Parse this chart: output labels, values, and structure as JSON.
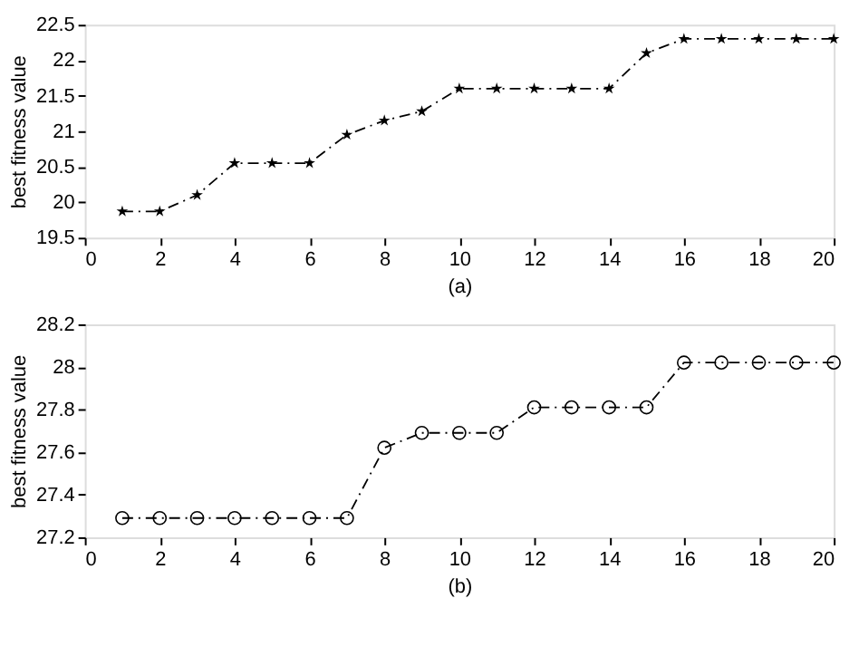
{
  "chart_data": [
    {
      "type": "line",
      "xlabel": "(a)",
      "ylabel": "best fitness value",
      "x": [
        1,
        2,
        3,
        4,
        5,
        6,
        7,
        8,
        9,
        10,
        11,
        12,
        13,
        14,
        15,
        16,
        17,
        18,
        19,
        20
      ],
      "series": [
        {
          "color": "#000000",
          "values": [
            19.87,
            19.87,
            20.1,
            20.55,
            20.55,
            20.55,
            20.95,
            21.15,
            21.28,
            21.6,
            21.6,
            21.6,
            21.6,
            21.6,
            22.1,
            22.3,
            22.3,
            22.3,
            22.3,
            22.3
          ]
        }
      ],
      "xlim": [
        0,
        20
      ],
      "xticks": [
        0,
        2,
        4,
        6,
        8,
        10,
        12,
        14,
        16,
        18,
        20
      ],
      "ylim": [
        19.5,
        22.5
      ],
      "yticks": [
        19.5,
        20,
        20.5,
        21,
        21.5,
        22,
        22.5
      ],
      "marker": "star",
      "line_style": "dashed",
      "grid": false,
      "legend": false
    },
    {
      "type": "line",
      "xlabel": "(b)",
      "ylabel": "best fitness value",
      "x": [
        1,
        2,
        3,
        4,
        5,
        6,
        7,
        8,
        9,
        10,
        11,
        12,
        13,
        14,
        15,
        16,
        17,
        18,
        19,
        20
      ],
      "series": [
        {
          "color": "#000000",
          "values": [
            27.29,
            27.29,
            27.29,
            27.29,
            27.29,
            27.29,
            27.29,
            27.62,
            27.69,
            27.69,
            27.69,
            27.81,
            27.81,
            27.81,
            27.81,
            28.02,
            28.02,
            28.02,
            28.02,
            28.02
          ]
        }
      ],
      "xlim": [
        0,
        20
      ],
      "xticks": [
        0,
        2,
        4,
        6,
        8,
        10,
        12,
        14,
        16,
        18,
        20
      ],
      "ylim": [
        27.2,
        28.2
      ],
      "yticks": [
        27.2,
        27.4,
        27.6,
        27.8,
        28,
        28.2
      ],
      "marker": "circle",
      "line_style": "dashed",
      "grid": false,
      "legend": false
    }
  ]
}
